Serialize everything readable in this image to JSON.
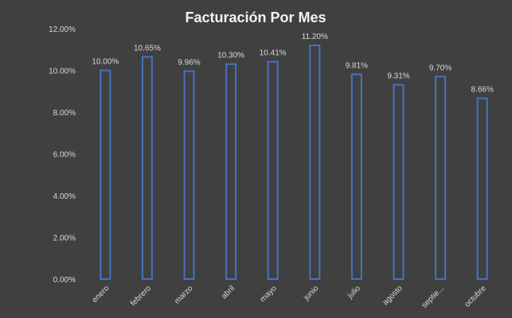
{
  "chart_data": {
    "type": "bar",
    "title": "Facturación Por Mes",
    "xlabel": "",
    "ylabel": "",
    "ylim": [
      0,
      12
    ],
    "y_ticks": [
      0,
      2,
      4,
      6,
      8,
      10,
      12
    ],
    "y_tick_labels": [
      "0.00%",
      "2.00%",
      "4.00%",
      "6.00%",
      "8.00%",
      "10.00%",
      "12.00%"
    ],
    "grid": false,
    "legend": "none",
    "categories": [
      "enero",
      "febrero",
      "marzo",
      "abril",
      "mayo",
      "junio",
      "julio",
      "agosto",
      "septie...",
      "octubre"
    ],
    "values": [
      10.0,
      10.65,
      9.96,
      10.3,
      10.41,
      11.2,
      9.81,
      9.31,
      9.7,
      8.66
    ],
    "data_labels": [
      "10.00%",
      "10.65%",
      "9.96%",
      "10.30%",
      "10.41%",
      "11.20%",
      "9.81%",
      "9.31%",
      "9.70%",
      "8.66%"
    ],
    "colors": {
      "background": "#404040",
      "bar_outline": "#4472c4",
      "text": "#d9d9d9",
      "title": "#f2f2f2"
    }
  }
}
